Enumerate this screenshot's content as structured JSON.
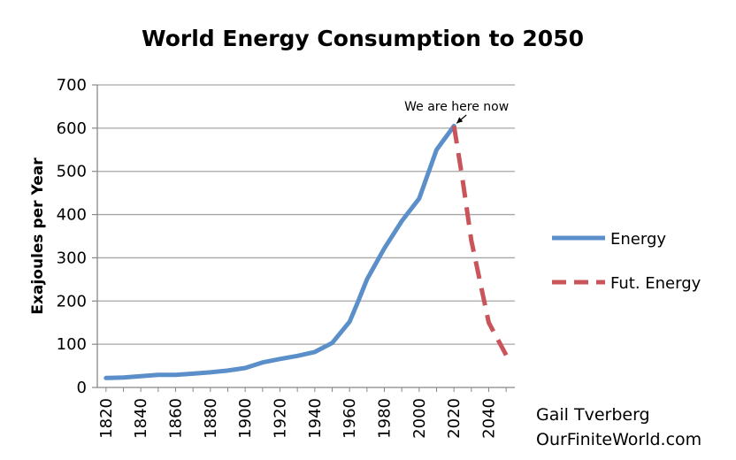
{
  "chart_data": {
    "type": "line",
    "title": "World Energy Consumption to 2050",
    "xlabel": "",
    "ylabel": "Exajoules per Year",
    "xlim": [
      1815,
      2055
    ],
    "ylim": [
      0,
      700
    ],
    "y_ticks": [
      "0",
      "100",
      "200",
      "300",
      "400",
      "500",
      "600",
      "700"
    ],
    "x_ticks": [
      "1820",
      "1840",
      "1860",
      "1880",
      "1900",
      "1920",
      "1940",
      "1960",
      "1980",
      "2000",
      "2020",
      "2040"
    ],
    "grid": true,
    "legend_position": "right",
    "series": [
      {
        "name": "Energy",
        "color": "#5b8fc9",
        "style": "solid",
        "x": [
          1820,
          1830,
          1840,
          1850,
          1860,
          1870,
          1880,
          1890,
          1900,
          1910,
          1920,
          1930,
          1940,
          1950,
          1960,
          1965,
          1970,
          1980,
          1990,
          2000,
          2010,
          2020
        ],
        "y": [
          22,
          23,
          26,
          29,
          29,
          32,
          35,
          39,
          45,
          58,
          66,
          73,
          82,
          103,
          152,
          200,
          250,
          322,
          385,
          437,
          550,
          605
        ]
      },
      {
        "name": "Fut. Energy",
        "color": "#c9545a",
        "style": "dashed",
        "x": [
          2020,
          2025,
          2030,
          2040,
          2050
        ],
        "y": [
          605,
          480,
          340,
          150,
          75
        ]
      }
    ],
    "annotations": [
      {
        "text": "We are here now",
        "x": 2020,
        "y": 605
      }
    ]
  },
  "credit": {
    "author": "Gail Tverberg",
    "site": "OurFiniteWorld.com"
  }
}
